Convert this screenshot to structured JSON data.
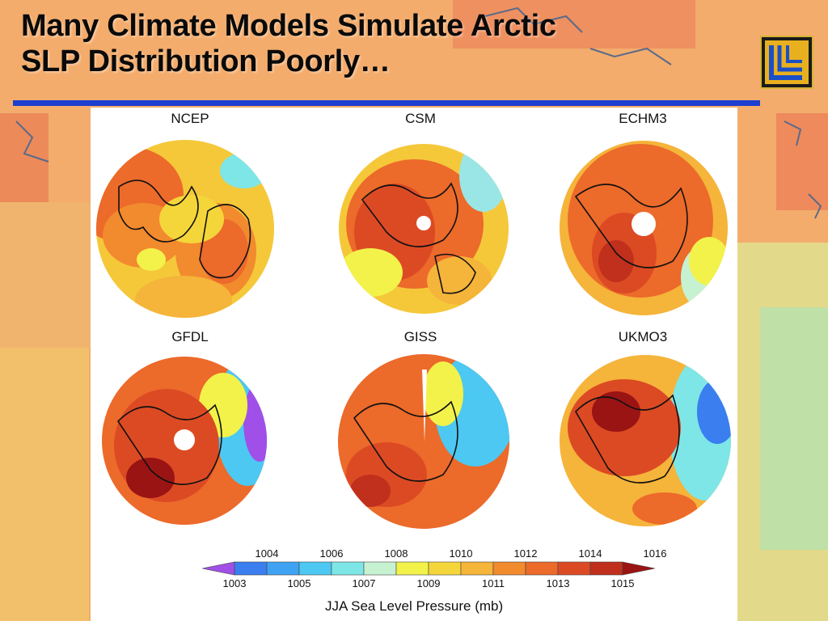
{
  "slide": {
    "title_line1": "Many Climate Models Simulate Arctic",
    "title_line2": "SLP Distribution Poorly…",
    "logo_icon": "llnl-logo-icon"
  },
  "panels": [
    {
      "id": "ncep",
      "label": "NCEP",
      "cx": 0,
      "pole_hole": false
    },
    {
      "id": "csm",
      "label": "CSM",
      "cx": 0,
      "pole_hole": true
    },
    {
      "id": "echm3",
      "label": "ECHM3",
      "cx": 0,
      "pole_hole": true
    },
    {
      "id": "gfdl",
      "label": "GFDL",
      "cx": 0,
      "pole_hole": true
    },
    {
      "id": "giss",
      "label": "GISS",
      "cx": 0,
      "pole_hole": false
    },
    {
      "id": "ukmo3",
      "label": "UKMO3",
      "cx": 0,
      "pole_hole": false
    }
  ],
  "colorbar": {
    "title": "JJA Sea Level Pressure (mb)",
    "upper_ticks": [
      "1004",
      "1006",
      "1008",
      "1010",
      "1012",
      "1014",
      "1016"
    ],
    "lower_ticks": [
      "1003",
      "1005",
      "1007",
      "1009",
      "1011",
      "1013",
      "1015"
    ],
    "colors": [
      "#a050e8",
      "#3a7ef0",
      "#3fa2f2",
      "#4cc8f2",
      "#7ee6e6",
      "#c7f2d2",
      "#f2f24a",
      "#f5d63a",
      "#f5b43a",
      "#f28a2e",
      "#ec6a2a",
      "#dc4a24",
      "#c0301c",
      "#9a1414"
    ]
  }
}
